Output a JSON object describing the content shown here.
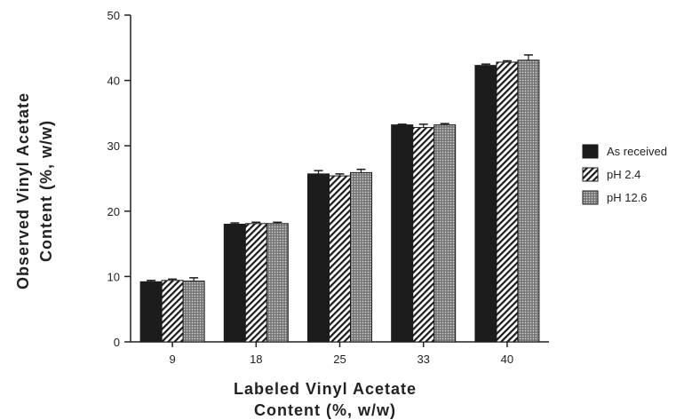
{
  "chart_data": {
    "type": "bar",
    "xlabel_lines": [
      "Labeled Vinyl Acetate",
      "Content (%, w/w)"
    ],
    "ylabel_lines": [
      "Observed Vinyl Acetate",
      "Content (%, w/w)"
    ],
    "categories": [
      "9",
      "18",
      "25",
      "33",
      "40"
    ],
    "ylim": [
      0,
      50
    ],
    "yticks": [
      0,
      10,
      20,
      30,
      40,
      50
    ],
    "grid": false,
    "legend_position": "right",
    "series": [
      {
        "name": "As received",
        "pattern": "solid",
        "values": [
          9.2,
          18.0,
          25.7,
          33.2,
          42.3
        ],
        "errors": [
          0.2,
          0.2,
          0.5,
          0.1,
          0.2
        ]
      },
      {
        "name": "pH 2.4",
        "pattern": "hatch",
        "values": [
          9.4,
          18.1,
          25.4,
          32.8,
          42.8
        ],
        "errors": [
          0.2,
          0.2,
          0.3,
          0.5,
          0.2
        ]
      },
      {
        "name": "pH 12.6",
        "pattern": "stipple",
        "values": [
          9.3,
          18.1,
          25.9,
          33.2,
          43.1
        ],
        "errors": [
          0.5,
          0.2,
          0.5,
          0.2,
          0.8
        ]
      }
    ]
  }
}
